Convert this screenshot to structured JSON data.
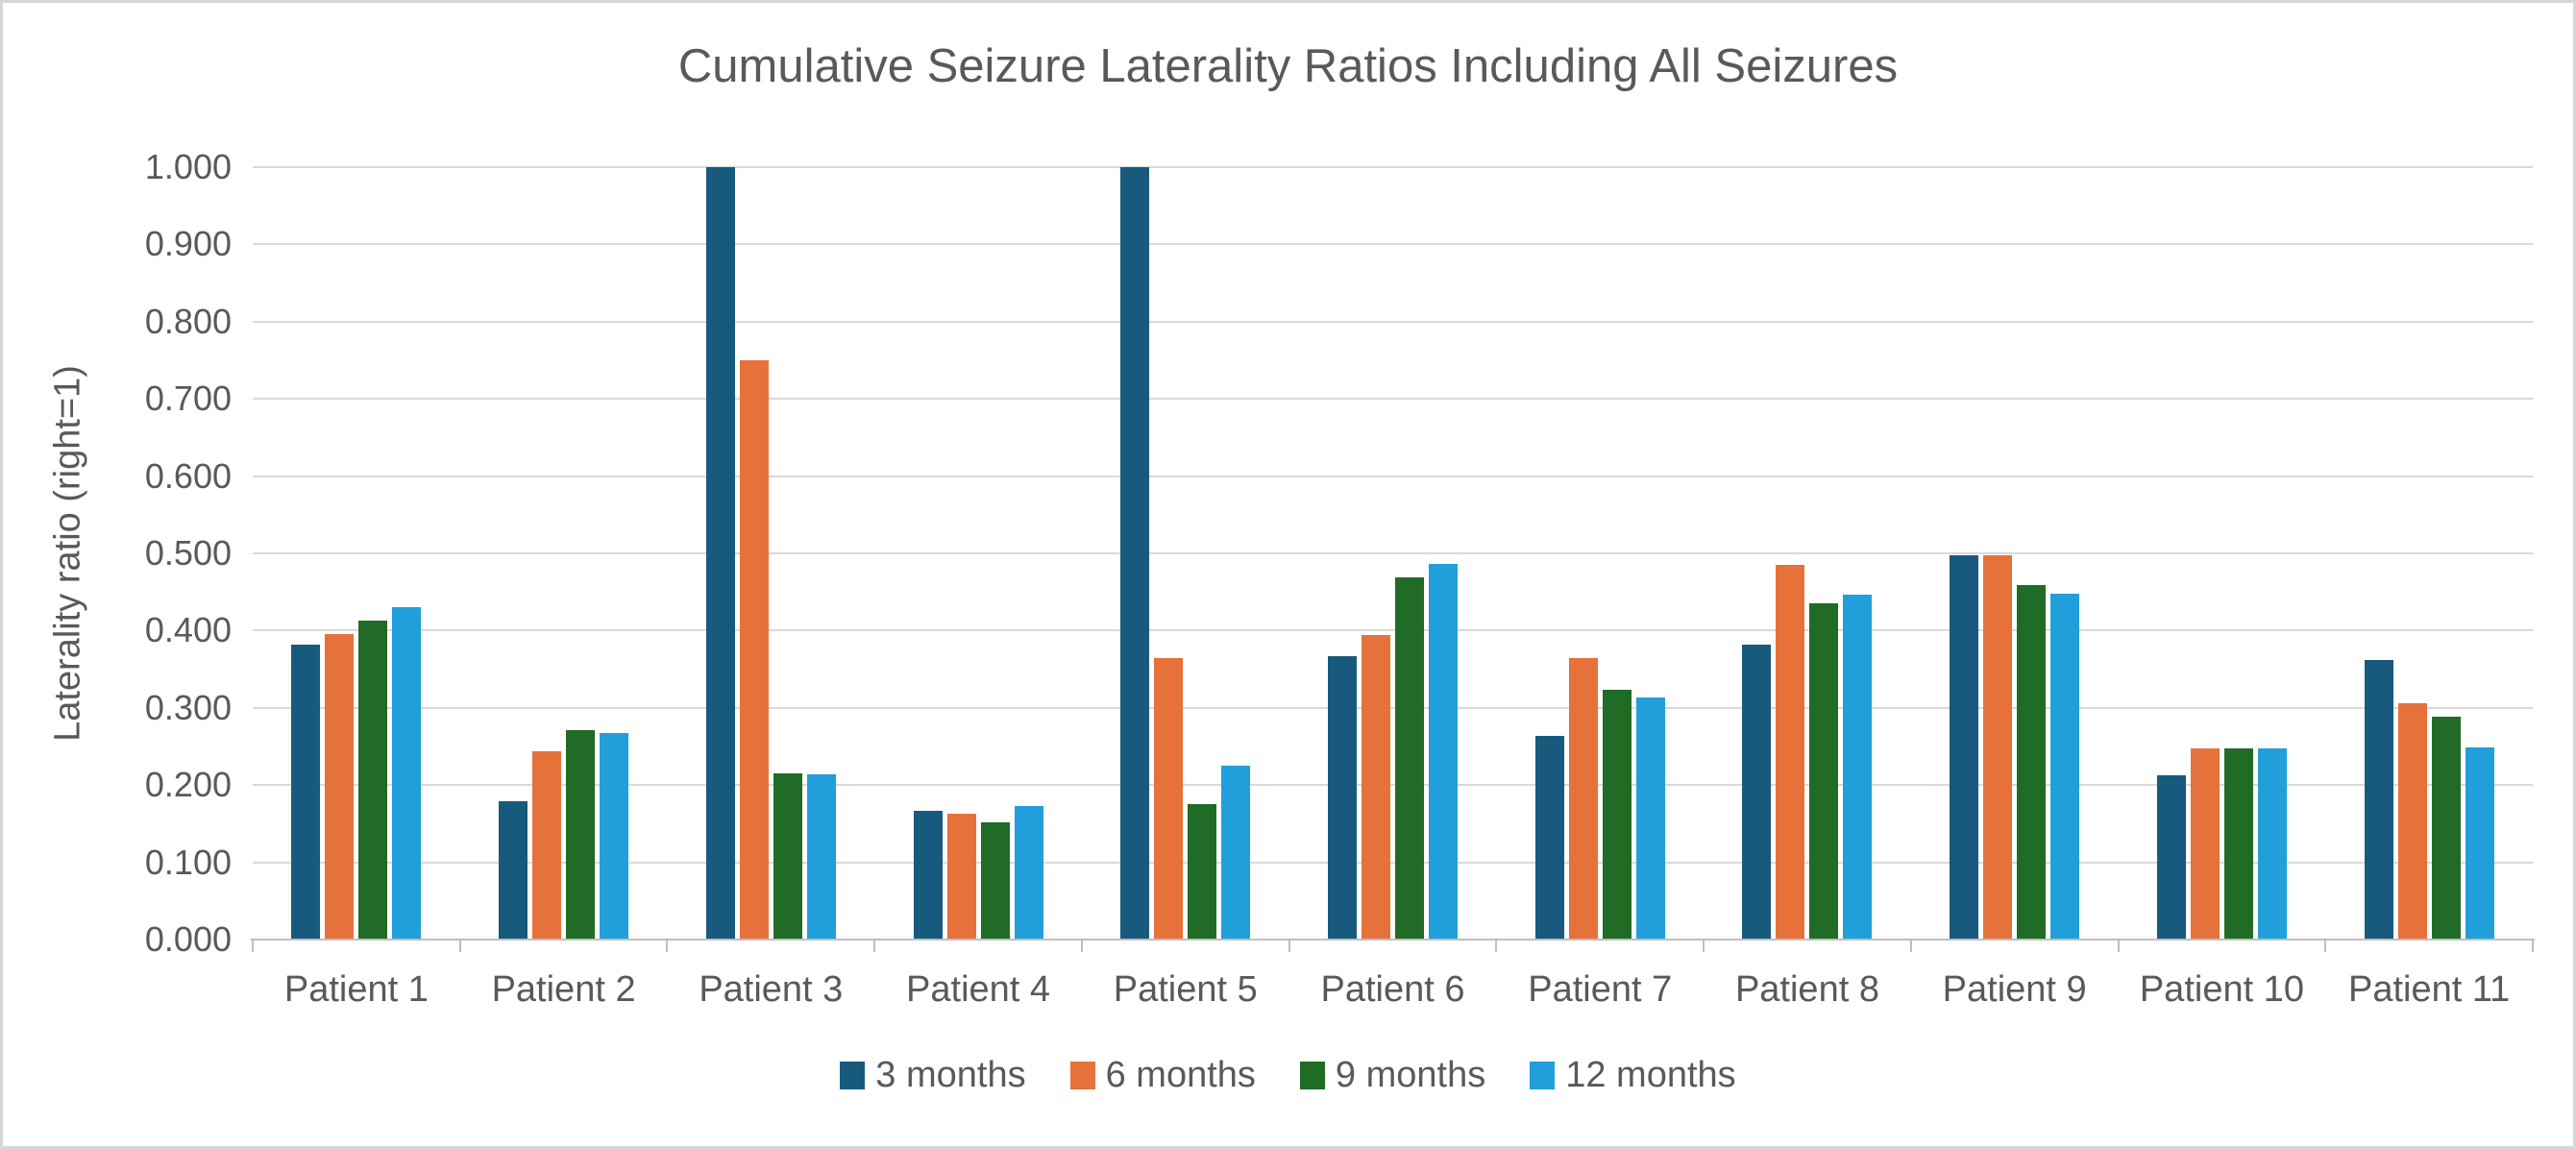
{
  "title": "Cumulative Seizure Laterality Ratios Including All Seizures",
  "chart_data": {
    "type": "bar",
    "title": "Cumulative Seizure Laterality Ratios Including All Seizures",
    "xlabel": "",
    "ylabel": "Laterality ratio (right=1)",
    "ylim": [
      0.0,
      1.0
    ],
    "ytick_step": 0.1,
    "ytick_labels": [
      "0.000",
      "0.100",
      "0.200",
      "0.300",
      "0.400",
      "0.500",
      "0.600",
      "0.700",
      "0.800",
      "0.900",
      "1.000"
    ],
    "grid": true,
    "legend_position": "bottom",
    "categories": [
      "Patient 1",
      "Patient 2",
      "Patient 3",
      "Patient 4",
      "Patient 5",
      "Patient 6",
      "Patient 7",
      "Patient 8",
      "Patient 9",
      "Patient 10",
      "Patient 11"
    ],
    "series": [
      {
        "name": "3 months",
        "color": "#175a7d",
        "values": [
          0.382,
          0.179,
          1.0,
          0.167,
          1.0,
          0.367,
          0.264,
          0.382,
          0.497,
          0.213,
          0.362
        ]
      },
      {
        "name": "6 months",
        "color": "#e7713a",
        "values": [
          0.395,
          0.244,
          0.75,
          0.163,
          0.364,
          0.394,
          0.365,
          0.485,
          0.497,
          0.248,
          0.306
        ]
      },
      {
        "name": "9 months",
        "color": "#206b25",
        "values": [
          0.413,
          0.271,
          0.215,
          0.152,
          0.176,
          0.469,
          0.324,
          0.435,
          0.459,
          0.248,
          0.288
        ]
      },
      {
        "name": "12 months",
        "color": "#219fda",
        "values": [
          0.43,
          0.268,
          0.214,
          0.173,
          0.225,
          0.486,
          0.313,
          0.446,
          0.448,
          0.248,
          0.249
        ]
      }
    ]
  },
  "colors": {
    "text": "#595959",
    "gridline": "#d9d9d9",
    "axis": "#bfbfbf",
    "background": "#ffffff",
    "frame_border": "#d6d6d6"
  }
}
